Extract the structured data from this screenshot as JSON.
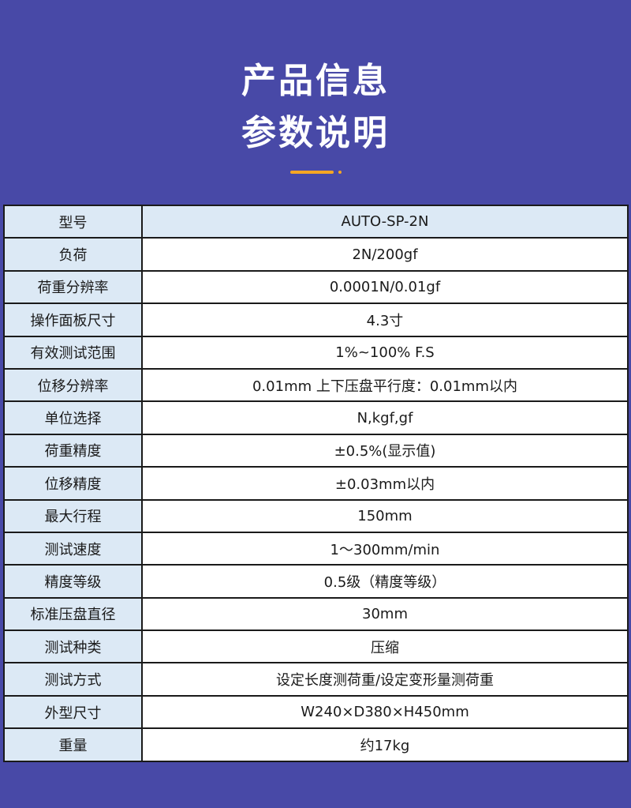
{
  "header": {
    "title_line1": "产品信息",
    "title_line2": "参数说明",
    "accent_color": "#f5a623",
    "background_color": "#4849a7"
  },
  "specs": [
    {
      "label": "型号",
      "value": "AUTO-SP-2N"
    },
    {
      "label": "负荷",
      "value": "2N/200gf"
    },
    {
      "label": "荷重分辨率",
      "value": "0.0001N/0.01gf"
    },
    {
      "label": "操作面板尺寸",
      "value": "4.3寸"
    },
    {
      "label": "有效测试范围",
      "value": "1%~100% F.S"
    },
    {
      "label": "位移分辨率",
      "value": "0.01mm 上下压盘平行度：0.01mm以内"
    },
    {
      "label": "单位选择",
      "value": "N,kgf,gf"
    },
    {
      "label": "荷重精度",
      "value": "±0.5%(显示值)"
    },
    {
      "label": "位移精度",
      "value": "±0.03mm以内"
    },
    {
      "label": "最大行程",
      "value": "150mm"
    },
    {
      "label": "测试速度",
      "value": "1～300mm/min"
    },
    {
      "label": "精度等级",
      "value": "0.5级（精度等级）"
    },
    {
      "label": "标准压盘直径",
      "value": "30mm"
    },
    {
      "label": "测试种类",
      "value": "压缩"
    },
    {
      "label": "测试方式",
      "value": "设定长度测荷重/设定变形量测荷重"
    },
    {
      "label": "外型尺寸",
      "value": "W240×D380×H450mm"
    },
    {
      "label": "重量",
      "value": "约17kg"
    }
  ]
}
